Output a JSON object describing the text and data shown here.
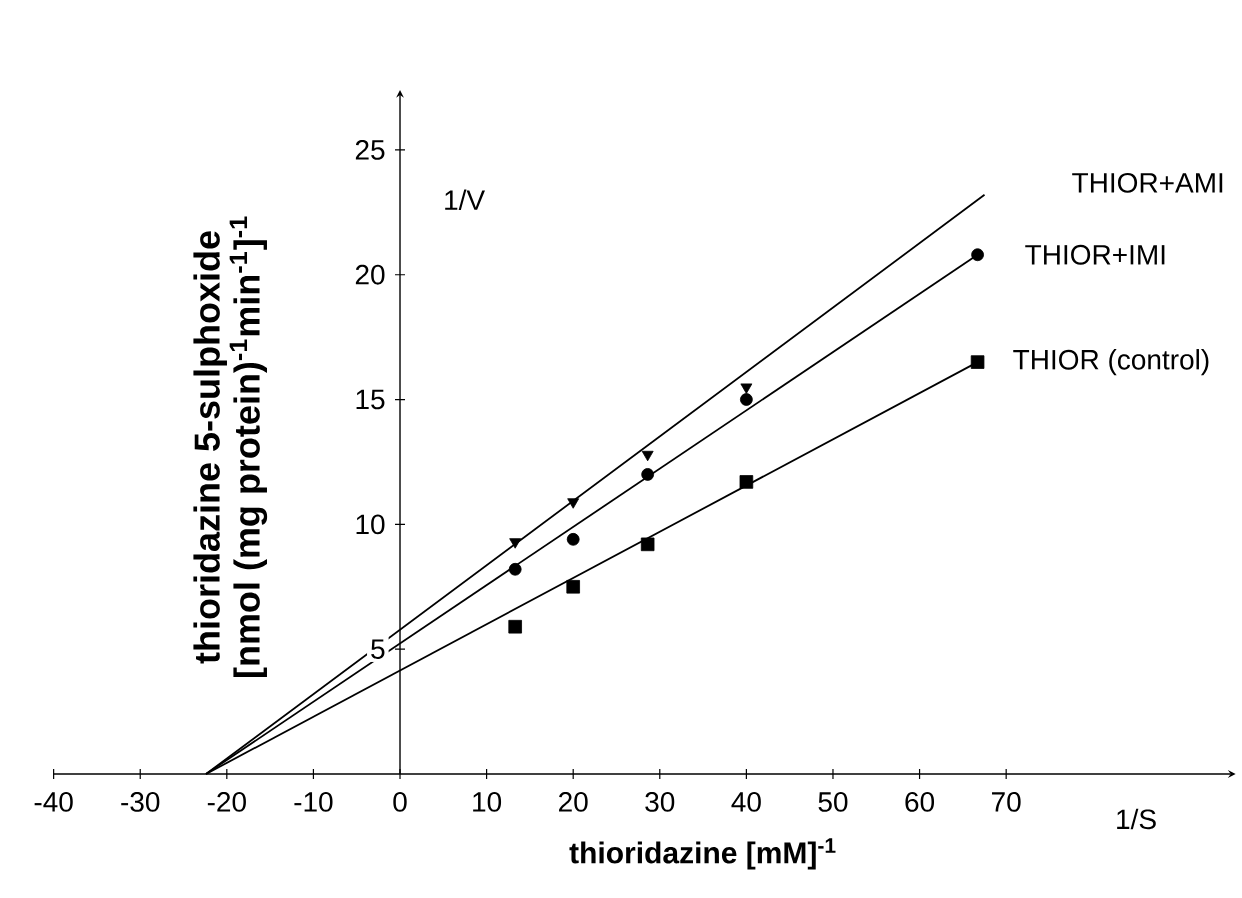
{
  "chart_data": {
    "type": "scatter",
    "xlabel": "thioridazine [mM]$^{-1}$",
    "ylabel": "thioridazine 5-sulphoxide [nmol (mg protein)$^{-1}$min$^{-1}$]$^{-1}$",
    "annotations": [
      "1/V",
      "1/S"
    ],
    "xlim": [
      -40,
      96.5
    ],
    "ylim": [
      0,
      27.4
    ],
    "xticks": [
      -40,
      -30,
      -20,
      -10,
      0,
      10,
      20,
      30,
      40,
      50,
      60,
      70
    ],
    "yticks": [
      5,
      10,
      15,
      20,
      25
    ],
    "series": [
      {
        "type": "scatter",
        "marker": "square",
        "color": "#000000",
        "x": [
          13.3,
          20,
          28.6,
          40,
          66.7
        ],
        "values": [
          5.9,
          7.5,
          9.2,
          11.7,
          16.5
        ]
      },
      {
        "type": "scatter",
        "marker": "circle",
        "color": "#000000",
        "x": [
          13.3,
          20,
          28.6,
          40,
          66.7
        ],
        "values": [
          8.2,
          9.4,
          12.0,
          15.0,
          20.8
        ]
      },
      {
        "type": "scatter",
        "marker": "triangle",
        "color": "#000000",
        "x": [
          13.3,
          20,
          28.6,
          40
        ],
        "values": [
          9.3,
          10.9,
          12.8,
          15.5
        ]
      },
      {
        "type": "line",
        "name": "THIOR (control)",
        "color": "#000000",
        "line_style": "solid",
        "x": [
          -22.4,
          66.7
        ],
        "values": [
          0,
          16.5
        ]
      },
      {
        "type": "line",
        "name": "THIOR+IMI",
        "color": "#000000",
        "line_style": "solid",
        "x": [
          -22.4,
          66.7
        ],
        "values": [
          0,
          20.8
        ]
      },
      {
        "type": "line",
        "name": "THIOR+AMI",
        "color": "#000000",
        "line_style": "solid",
        "x": [
          -22.4,
          67.5
        ],
        "values": [
          0,
          23.2
        ]
      }
    ]
  }
}
